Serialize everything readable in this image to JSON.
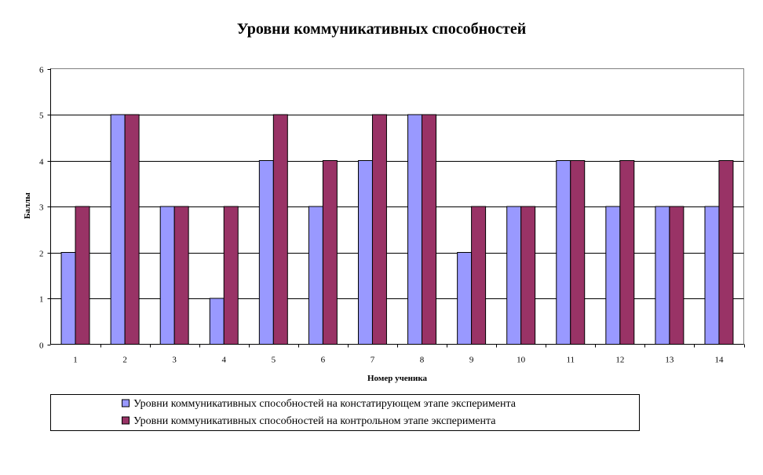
{
  "chart_data": {
    "type": "bar",
    "title": "Уровни коммуникативных способностей",
    "xlabel": "Номер ученика",
    "ylabel": "Баллы",
    "categories": [
      "1",
      "2",
      "3",
      "4",
      "5",
      "6",
      "7",
      "8",
      "9",
      "10",
      "11",
      "12",
      "13",
      "14"
    ],
    "ylim": [
      0,
      6
    ],
    "yticks": [
      "0",
      "1",
      "2",
      "3",
      "4",
      "5",
      "6"
    ],
    "grid": true,
    "legend_position": "bottom",
    "series": [
      {
        "name": "Уровни коммуникативных способностей на констатирующем этапе эксперимента",
        "color": "#9999ff",
        "values": [
          2,
          5,
          3,
          1,
          4,
          3,
          4,
          5,
          2,
          3,
          4,
          3,
          3,
          3
        ]
      },
      {
        "name": "Уровни коммуникативных способностей на контрольном этапе эксперимента",
        "color": "#993366",
        "values": [
          3,
          5,
          3,
          3,
          5,
          4,
          5,
          5,
          3,
          3,
          4,
          4,
          3,
          4
        ]
      }
    ]
  }
}
